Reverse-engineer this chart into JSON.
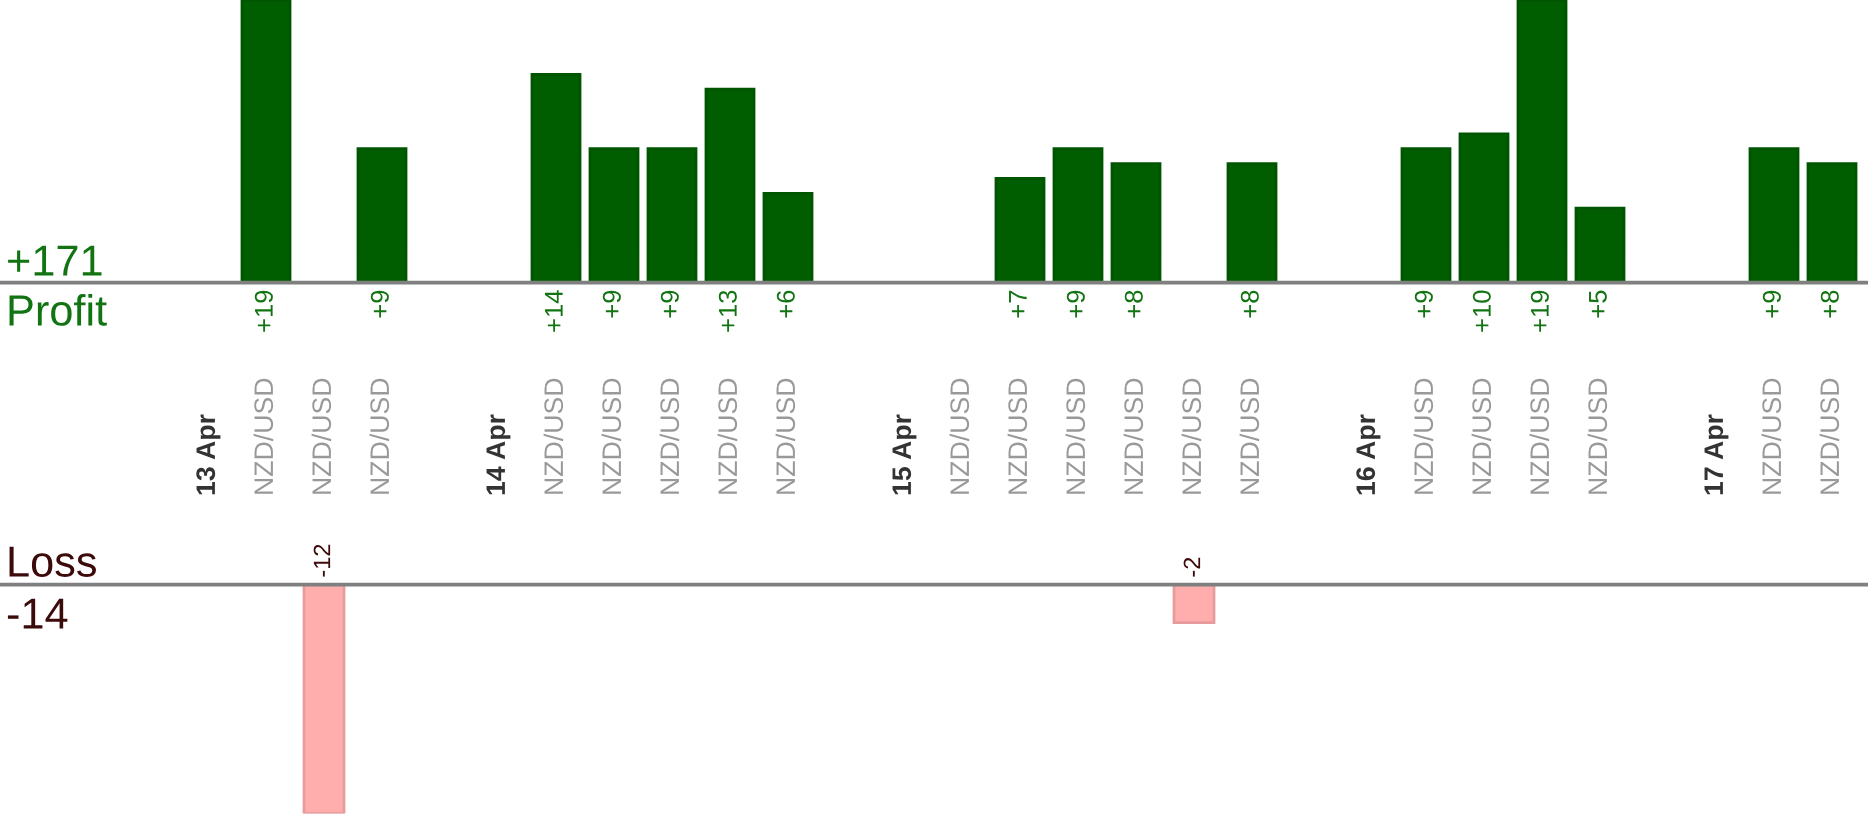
{
  "chart_data": [
    {
      "type": "bar",
      "title": "Profit",
      "annotations": [
        "+171"
      ],
      "categories": [
        "13 Apr",
        "NZD/USD",
        "NZD/USD",
        "NZD/USD",
        null,
        "14 Apr",
        "NZD/USD",
        "NZD/USD",
        "NZD/USD",
        "NZD/USD",
        "NZD/USD",
        null,
        "15 Apr",
        "NZD/USD",
        "NZD/USD",
        "NZD/USD",
        "NZD/USD",
        "NZD/USD",
        "NZD/USD",
        null,
        "16 Apr",
        "NZD/USD",
        "NZD/USD",
        "NZD/USD",
        "NZD/USD",
        null,
        "17 Apr",
        "NZD/USD",
        "NZD/USD"
      ],
      "values": [
        null,
        19,
        null,
        9,
        null,
        null,
        14,
        9,
        9,
        13,
        6,
        null,
        null,
        null,
        7,
        9,
        8,
        null,
        8,
        null,
        null,
        9,
        10,
        19,
        5,
        null,
        null,
        9,
        8
      ],
      "value_labels": [
        null,
        "+19",
        null,
        "+9",
        null,
        null,
        "+14",
        "+9",
        "+9",
        "+13",
        "+6",
        null,
        null,
        null,
        "+7",
        "+9",
        "+8",
        null,
        "+8",
        null,
        null,
        "+9",
        "+10",
        "+19",
        "+5",
        null,
        null,
        "+9",
        "+8"
      ],
      "color": "#005e00",
      "tick_labels": "x"
    },
    {
      "type": "bar",
      "title": "Loss",
      "annotations": [
        "-14"
      ],
      "categories": [
        null,
        null,
        null,
        null,
        null,
        null,
        null,
        null,
        null,
        null,
        null,
        null,
        null,
        null,
        null,
        null,
        null,
        null,
        null,
        null,
        null,
        null,
        null,
        null,
        null,
        null,
        null,
        null,
        null
      ],
      "values": [
        null,
        null,
        -12,
        null,
        null,
        null,
        null,
        null,
        null,
        null,
        null,
        null,
        null,
        null,
        null,
        null,
        null,
        -2,
        null,
        null,
        null,
        null,
        null,
        null,
        null,
        null,
        null,
        null,
        null
      ],
      "value_labels": [
        null,
        null,
        "-12",
        null,
        null,
        null,
        null,
        null,
        null,
        null,
        null,
        null,
        null,
        null,
        null,
        null,
        null,
        "-2",
        null,
        null,
        null,
        null,
        null,
        null,
        null,
        null,
        null,
        null,
        null
      ],
      "color": "#ffadad"
    }
  ]
}
